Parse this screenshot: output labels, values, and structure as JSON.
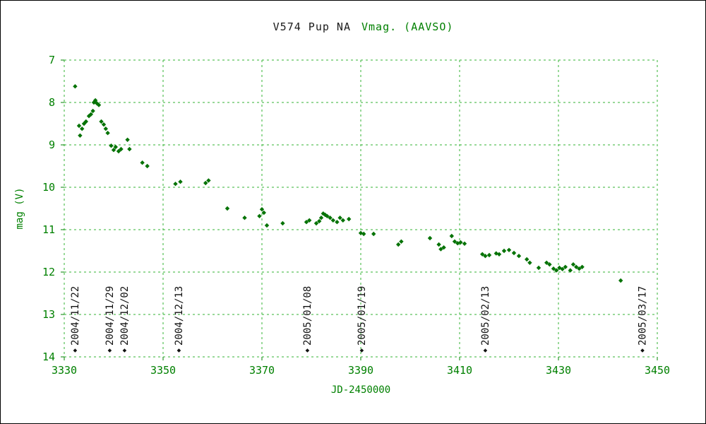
{
  "chart": {
    "title_main": "V574 Pup    NA",
    "title_series": "Vmag. (AAVSO)",
    "xlabel": "JD-2450000",
    "ylabel": "mag (V)"
  },
  "chart_data": {
    "type": "scatter",
    "title": "V574 Pup NA Vmag. (AAVSO)",
    "xlabel": "JD-2450000",
    "ylabel": "mag (V)",
    "xlim": [
      3330,
      3450
    ],
    "ylim": [
      7,
      14
    ],
    "y_inverted": true,
    "grid": true,
    "legend": "none",
    "xticks": [
      3330,
      3350,
      3370,
      3390,
      3410,
      3430,
      3450
    ],
    "yticks": [
      7,
      8,
      9,
      10,
      11,
      12,
      13,
      14
    ],
    "colors": {
      "point": "#067306",
      "grid": "#33b333",
      "tick_label": "#008000",
      "axis_label": "#008000",
      "title_main": "#1a1a1a",
      "title_series": "#008000",
      "date_label": "#111111",
      "frame": "#000000"
    },
    "points": [
      [
        3332.2,
        7.62
      ],
      [
        3333.0,
        8.55
      ],
      [
        3333.2,
        8.78
      ],
      [
        3333.6,
        8.62
      ],
      [
        3334.0,
        8.5
      ],
      [
        3334.4,
        8.45
      ],
      [
        3335.0,
        8.32
      ],
      [
        3335.4,
        8.28
      ],
      [
        3335.8,
        8.2
      ],
      [
        3336.0,
        8.0
      ],
      [
        3336.3,
        7.95
      ],
      [
        3336.6,
        8.02
      ],
      [
        3337.0,
        8.06
      ],
      [
        3337.5,
        8.45
      ],
      [
        3338.0,
        8.52
      ],
      [
        3338.4,
        8.62
      ],
      [
        3338.8,
        8.72
      ],
      [
        3339.5,
        9.02
      ],
      [
        3340.0,
        9.12
      ],
      [
        3340.4,
        9.05
      ],
      [
        3341.0,
        9.15
      ],
      [
        3341.5,
        9.1
      ],
      [
        3342.8,
        8.88
      ],
      [
        3343.2,
        9.1
      ],
      [
        3345.8,
        9.42
      ],
      [
        3346.8,
        9.5
      ],
      [
        3352.5,
        9.92
      ],
      [
        3353.5,
        9.87
      ],
      [
        3358.6,
        9.9
      ],
      [
        3359.2,
        9.84
      ],
      [
        3363.0,
        10.5
      ],
      [
        3366.5,
        10.72
      ],
      [
        3369.5,
        10.68
      ],
      [
        3370.0,
        10.52
      ],
      [
        3370.4,
        10.6
      ],
      [
        3371.0,
        10.9
      ],
      [
        3374.2,
        10.85
      ],
      [
        3379.0,
        10.82
      ],
      [
        3379.6,
        10.78
      ],
      [
        3381.0,
        10.85
      ],
      [
        3381.6,
        10.8
      ],
      [
        3382.0,
        10.72
      ],
      [
        3382.4,
        10.62
      ],
      [
        3382.8,
        10.65
      ],
      [
        3383.2,
        10.68
      ],
      [
        3383.8,
        10.72
      ],
      [
        3384.4,
        10.78
      ],
      [
        3385.2,
        10.82
      ],
      [
        3385.8,
        10.72
      ],
      [
        3386.4,
        10.78
      ],
      [
        3387.6,
        10.75
      ],
      [
        3390.0,
        11.08
      ],
      [
        3390.6,
        11.1
      ],
      [
        3392.6,
        11.1
      ],
      [
        3397.6,
        11.35
      ],
      [
        3398.2,
        11.28
      ],
      [
        3404.0,
        11.2
      ],
      [
        3405.8,
        11.35
      ],
      [
        3406.2,
        11.46
      ],
      [
        3406.8,
        11.42
      ],
      [
        3408.4,
        11.15
      ],
      [
        3409.0,
        11.28
      ],
      [
        3409.6,
        11.32
      ],
      [
        3410.2,
        11.3
      ],
      [
        3411.0,
        11.33
      ],
      [
        3414.6,
        11.58
      ],
      [
        3415.2,
        11.62
      ],
      [
        3416.0,
        11.6
      ],
      [
        3417.4,
        11.56
      ],
      [
        3418.0,
        11.58
      ],
      [
        3419.0,
        11.5
      ],
      [
        3420.0,
        11.48
      ],
      [
        3421.0,
        11.55
      ],
      [
        3422.0,
        11.62
      ],
      [
        3423.6,
        11.7
      ],
      [
        3424.2,
        11.78
      ],
      [
        3426.0,
        11.9
      ],
      [
        3427.6,
        11.78
      ],
      [
        3428.2,
        11.82
      ],
      [
        3429.0,
        11.92
      ],
      [
        3429.6,
        11.96
      ],
      [
        3430.2,
        11.9
      ],
      [
        3430.8,
        11.93
      ],
      [
        3431.4,
        11.88
      ],
      [
        3432.4,
        11.96
      ],
      [
        3433.0,
        11.82
      ],
      [
        3433.6,
        11.88
      ],
      [
        3434.2,
        11.92
      ],
      [
        3434.8,
        11.88
      ],
      [
        3442.6,
        12.2
      ]
    ],
    "date_markers": [
      {
        "label": "2004/11/22",
        "jd": 3332.2,
        "mag": 13.85
      },
      {
        "label": "2004/11/29",
        "jd": 3339.2,
        "mag": 13.85
      },
      {
        "label": "2004/12/02",
        "jd": 3342.2,
        "mag": 13.85
      },
      {
        "label": "2004/12/13",
        "jd": 3353.2,
        "mag": 13.85
      },
      {
        "label": "2005/01/08",
        "jd": 3379.2,
        "mag": 13.85
      },
      {
        "label": "2005/01/19",
        "jd": 3390.2,
        "mag": 13.85
      },
      {
        "label": "2005/02/13",
        "jd": 3415.2,
        "mag": 13.85
      },
      {
        "label": "2005/03/17",
        "jd": 3447.0,
        "mag": 13.85
      }
    ]
  }
}
